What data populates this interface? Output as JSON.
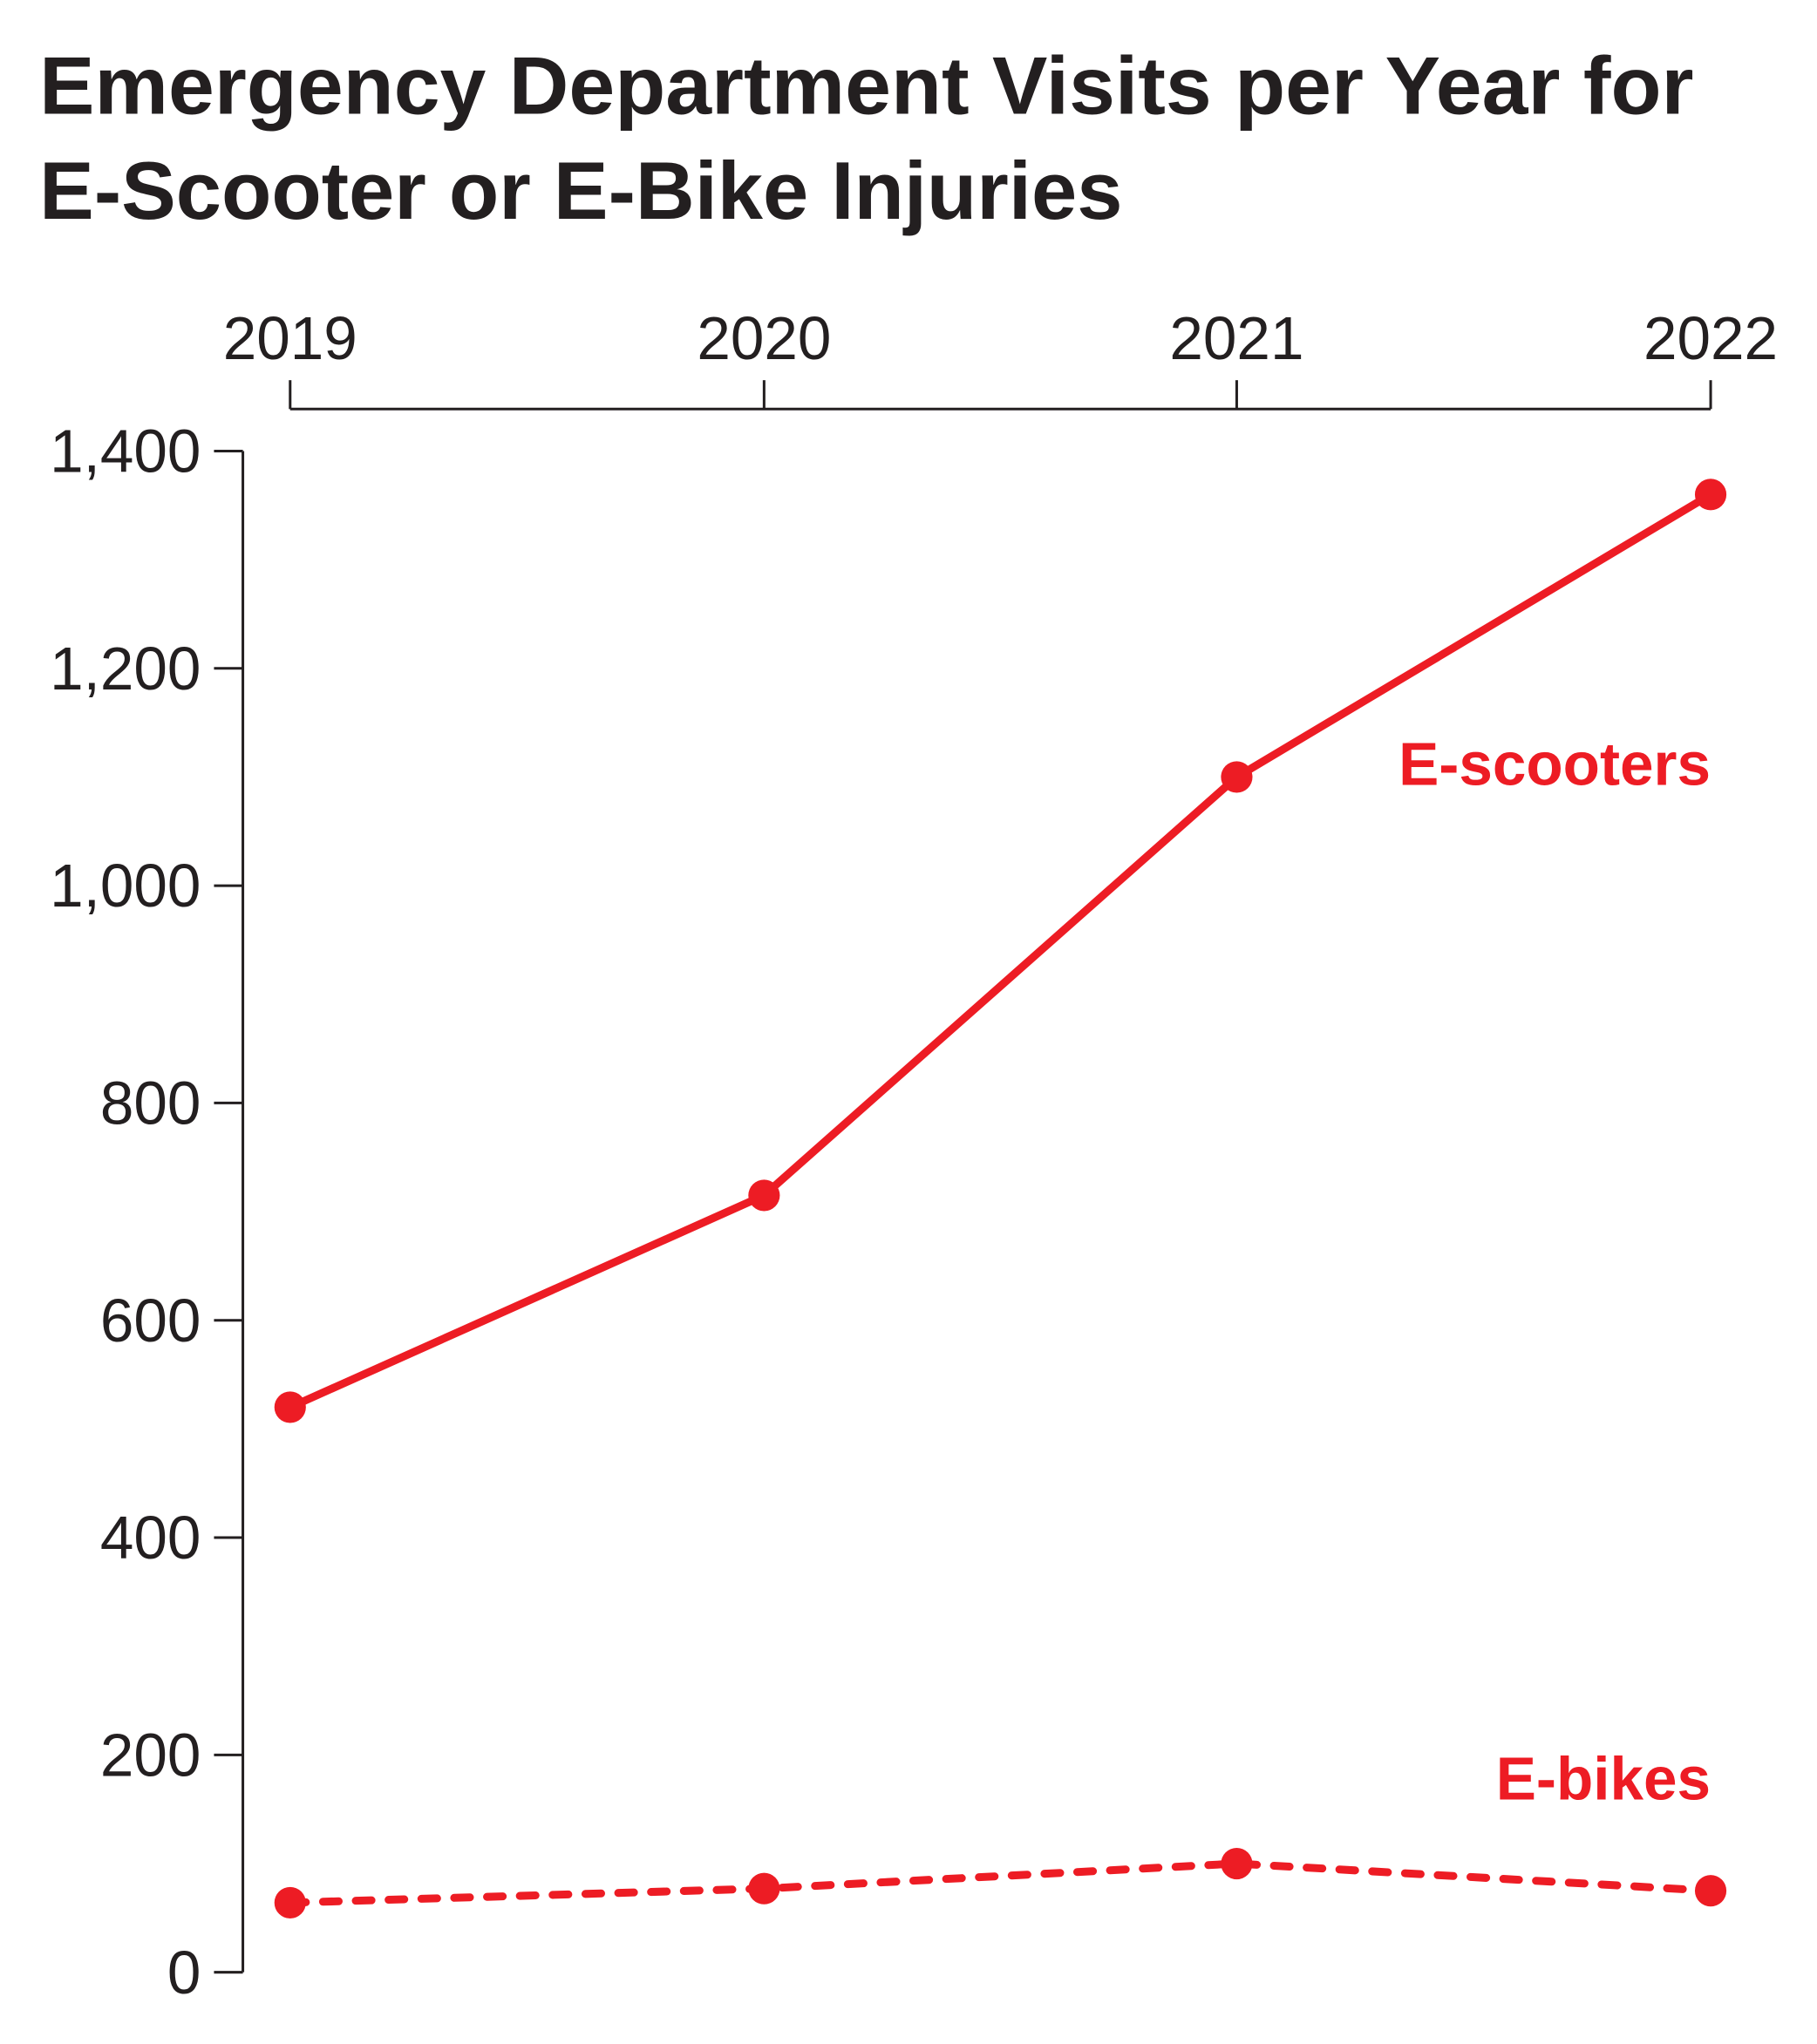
{
  "chart_data": {
    "type": "line",
    "title": "Emergency Department Visits per Year for E-Scooter or E-Bike Injuries",
    "title_lines": [
      "Emergency Department Visits per Year for",
      "E-Scooter or E-Bike Injuries"
    ],
    "x": [
      "2019",
      "2020",
      "2021",
      "2022"
    ],
    "x_axis_position": "top",
    "ylim": [
      0,
      1400
    ],
    "yticks": [
      0,
      200,
      400,
      600,
      800,
      1000,
      1200,
      1400
    ],
    "ytick_labels": [
      "0",
      "200",
      "400",
      "600",
      "800",
      "1,000",
      "1,200",
      "1,400"
    ],
    "grid": false,
    "series": [
      {
        "name": "E-scooters",
        "values": [
          520,
          715,
          1100,
          1360
        ],
        "style": "solid",
        "color": "#ED1C24"
      },
      {
        "name": "E-bikes",
        "values": [
          64,
          77,
          100,
          75
        ],
        "style": "dashed",
        "color": "#ED1C24"
      }
    ]
  }
}
